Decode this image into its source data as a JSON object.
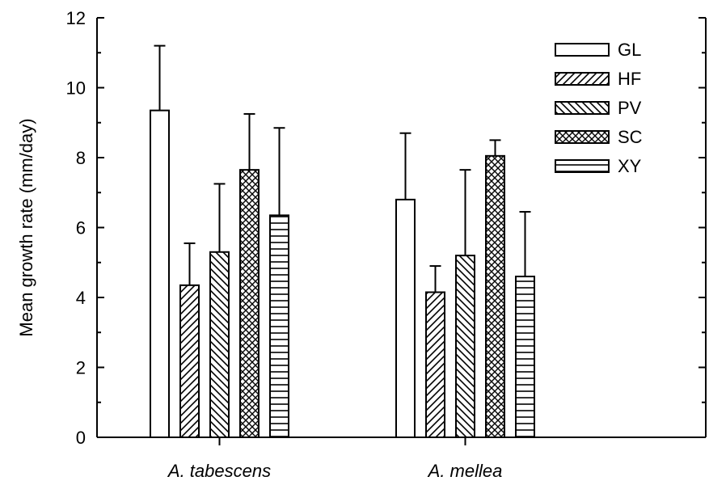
{
  "chart_data": {
    "type": "bar",
    "title": "",
    "xlabel": "",
    "ylabel": "Mean growth rate (mm/day)",
    "ylim": [
      0,
      12
    ],
    "yticks": [
      "0",
      "2",
      "4",
      "6",
      "8",
      "10",
      "12"
    ],
    "categories": [
      "A. tabescens",
      "A. mellea"
    ],
    "series": [
      {
        "name": "GL",
        "values": [
          9.35,
          6.8
        ],
        "errors": [
          1.85,
          1.9
        ],
        "pattern": "none"
      },
      {
        "name": "HF",
        "values": [
          4.35,
          4.15
        ],
        "errors": [
          1.2,
          0.75
        ],
        "pattern": "diag-up"
      },
      {
        "name": "PV",
        "values": [
          5.3,
          5.2
        ],
        "errors": [
          1.95,
          2.45
        ],
        "pattern": "diag-down"
      },
      {
        "name": "SC",
        "values": [
          7.65,
          8.05
        ],
        "errors": [
          1.6,
          0.45
        ],
        "pattern": "crosshatch"
      },
      {
        "name": "XY",
        "values": [
          6.35,
          4.6
        ],
        "errors": [
          2.5,
          1.85
        ],
        "pattern": "horizontal"
      }
    ],
    "error_bars": "upper",
    "grid": false,
    "legend": "top-right",
    "colors": {
      "bar_fill": "#ffffff",
      "stroke": "#000000"
    }
  }
}
